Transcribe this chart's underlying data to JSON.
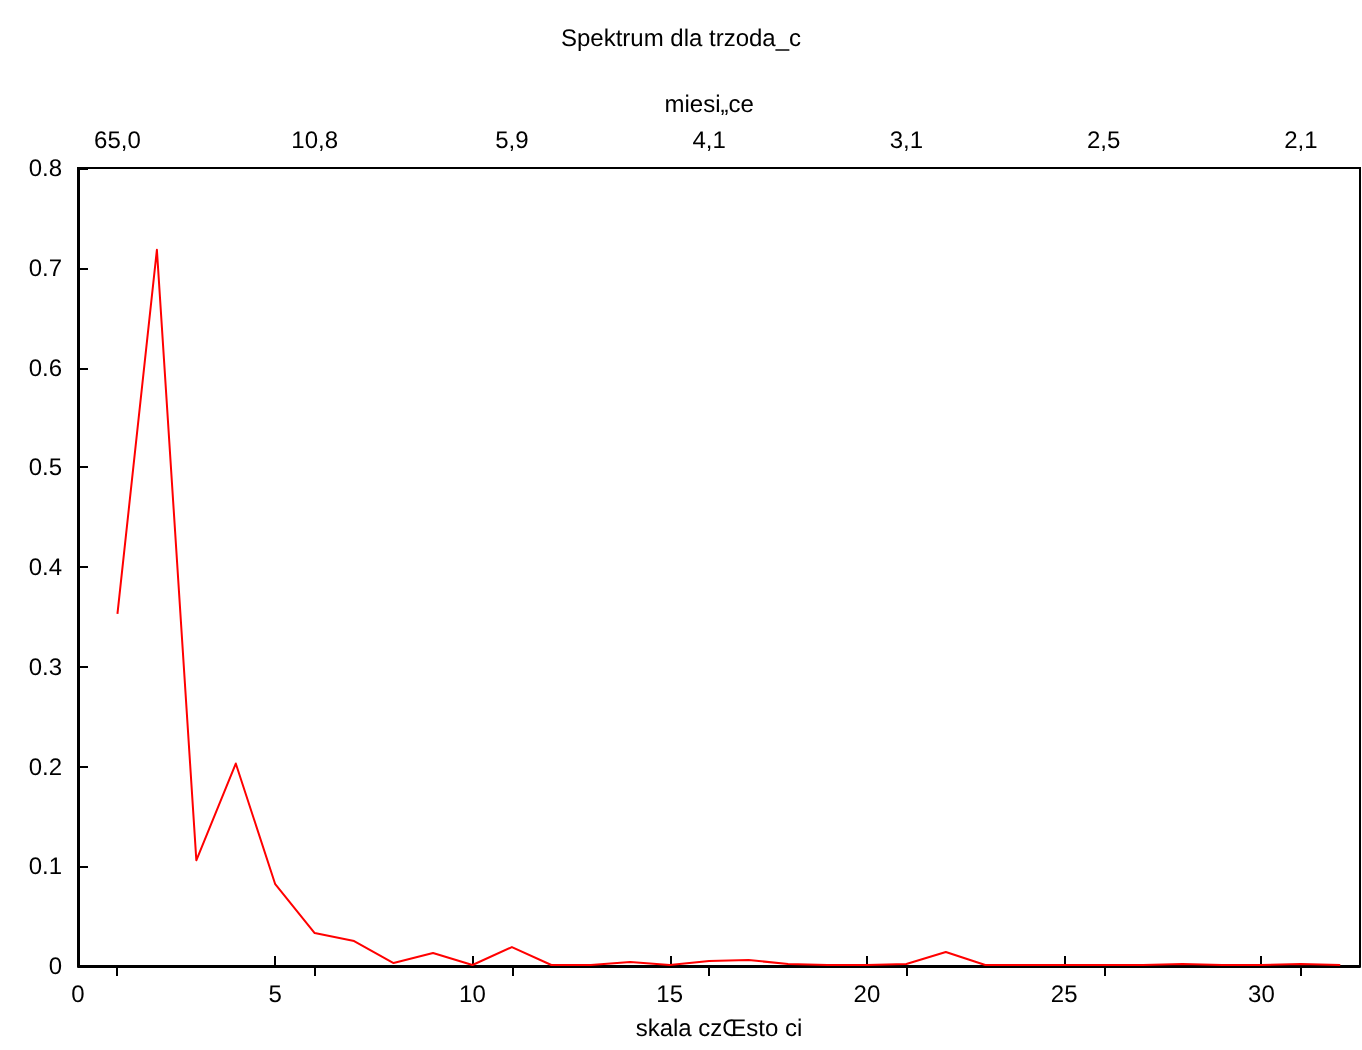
{
  "chart_data": {
    "type": "line",
    "title": "Spektrum dla trzoda_c",
    "xlabel": "skala czŒsto ci",
    "x2label": "miesi„ce",
    "x": [
      1,
      2,
      3,
      4,
      5,
      6,
      7,
      8,
      9,
      10,
      11,
      12,
      13,
      14,
      15,
      16,
      17,
      18,
      19,
      20,
      21,
      22,
      23,
      24,
      25,
      26,
      27,
      28,
      29,
      30,
      31,
      32
    ],
    "series": [
      {
        "color": "#ff0000",
        "values": [
          0.353,
          0.718,
          0.106,
          0.203,
          0.082,
          0.033,
          0.025,
          0.003,
          0.013,
          0.001,
          0.019,
          0.001,
          0.001,
          0.004,
          0.001,
          0.005,
          0.006,
          0.002,
          0.001,
          0.001,
          0.002,
          0.014,
          0.001,
          0.001,
          0.001,
          0.001,
          0.001,
          0.002,
          0.001,
          0.001,
          0.002,
          0.001
        ]
      }
    ],
    "xlim": [
      0,
      32.5
    ],
    "xticks": [
      0,
      5,
      10,
      15,
      20,
      25,
      30
    ],
    "annotations": [
      "65,0",
      "10,8",
      "5,9",
      "4,1",
      "3,1",
      "2,5",
      "2,1"
    ],
    "ylim": [
      0,
      0.8
    ],
    "yticks": [
      0,
      0.1,
      0.2,
      0.3,
      0.4,
      0.5,
      0.6,
      0.7,
      0.8
    ],
    "grid": false,
    "marker": "none",
    "line_style": "solid"
  }
}
